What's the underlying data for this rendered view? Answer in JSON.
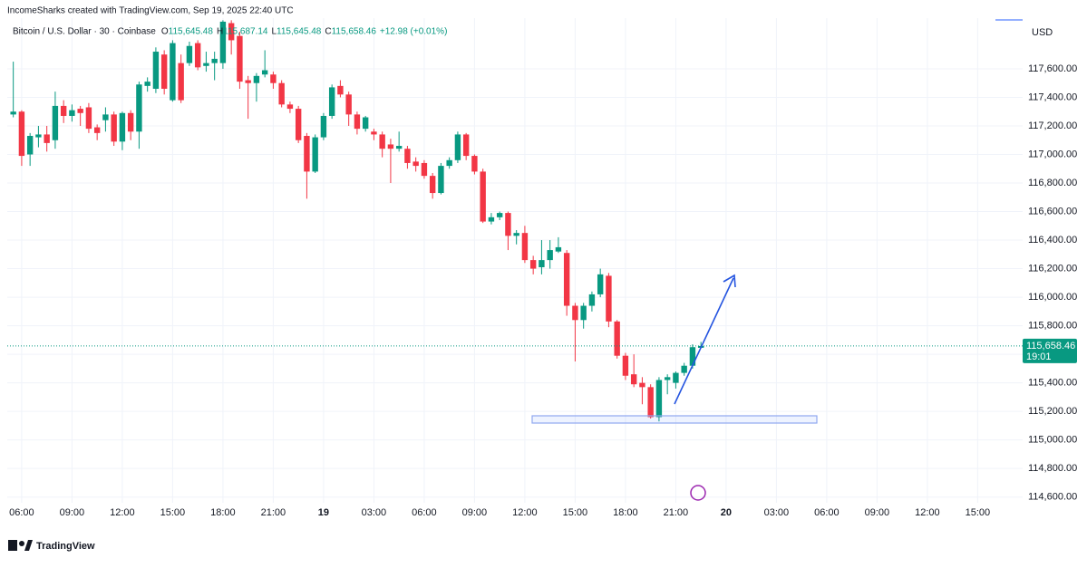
{
  "chart_data": {
    "type": "candlestick",
    "credit": "IncomeSharks created with TradingView.com, Sep 19, 2025 22:40 UTC",
    "symbol": "Bitcoin / U.S. Dollar · 30 · Coinbase",
    "ohlc": [
      {
        "key": "O",
        "value": "115,645.48"
      },
      {
        "key": "H",
        "value": "115,687.14"
      },
      {
        "key": "L",
        "value": "115,645.48"
      },
      {
        "key": "C",
        "value": "115,658.46"
      }
    ],
    "change": "+12.98 (+0.01%)",
    "currency": "USD",
    "last_price": {
      "value": 115658.46,
      "label": "115,658.46"
    },
    "countdown": "19:01",
    "brand": "TradingView",
    "up_color": "#089981",
    "down_color": "#f23645",
    "grid": true,
    "xlim": [
      5.14,
      65.68
    ],
    "ylim": [
      114560,
      117955
    ],
    "xticks": [
      {
        "value": 6,
        "label": "06:00"
      },
      {
        "value": 9,
        "label": "09:00"
      },
      {
        "value": 12,
        "label": "12:00"
      },
      {
        "value": 15,
        "label": "15:00"
      },
      {
        "value": 18,
        "label": "18:00"
      },
      {
        "value": 21,
        "label": "21:00"
      },
      {
        "value": 24,
        "label": "19"
      },
      {
        "value": 27,
        "label": "03:00"
      },
      {
        "value": 30,
        "label": "06:00"
      },
      {
        "value": 33,
        "label": "09:00"
      },
      {
        "value": 36,
        "label": "12:00"
      },
      {
        "value": 39,
        "label": "15:00"
      },
      {
        "value": 42,
        "label": "18:00"
      },
      {
        "value": 45,
        "label": "21:00"
      },
      {
        "value": 48,
        "label": "20"
      },
      {
        "value": 51,
        "label": "03:00"
      },
      {
        "value": 54,
        "label": "06:00"
      },
      {
        "value": 57,
        "label": "09:00"
      },
      {
        "value": 60,
        "label": "12:00"
      },
      {
        "value": 63,
        "label": "15:00"
      }
    ],
    "yticks": [
      {
        "value": 114600,
        "label": "114,600.00"
      },
      {
        "value": 114800,
        "label": "114,800.00"
      },
      {
        "value": 115000,
        "label": "115,000.00"
      },
      {
        "value": 115200,
        "label": "115,200.00"
      },
      {
        "value": 115400,
        "label": "115,400.00"
      },
      {
        "value": 115600,
        "label": "115,600.00"
      },
      {
        "value": 115800,
        "label": "115,800.00"
      },
      {
        "value": 116000,
        "label": "116,000.00"
      },
      {
        "value": 116200,
        "label": "116,200.00"
      },
      {
        "value": 116400,
        "label": "116,400.00"
      },
      {
        "value": 116600,
        "label": "116,600.00"
      },
      {
        "value": 116800,
        "label": "116,800.00"
      },
      {
        "value": 117000,
        "label": "117,000.00"
      },
      {
        "value": 117200,
        "label": "117,200.00"
      },
      {
        "value": 117400,
        "label": "117,400.00"
      },
      {
        "value": 117600,
        "label": "117,600.00"
      }
    ],
    "x": [
      5.5,
      6,
      6.5,
      7,
      7.5,
      8,
      8.5,
      9,
      9.5,
      10,
      10.5,
      11,
      11.5,
      12,
      12.5,
      13,
      13.5,
      14,
      14.5,
      15,
      15.5,
      16,
      16.5,
      17,
      17.5,
      18,
      18.5,
      19,
      19.5,
      20,
      20.5,
      21,
      21.5,
      22,
      22.5,
      23,
      23.5,
      24,
      24.5,
      25,
      25.5,
      26,
      26.5,
      27,
      27.5,
      28,
      28.5,
      29,
      29.5,
      30,
      30.5,
      31,
      31.5,
      32,
      32.5,
      33,
      33.5,
      34,
      34.5,
      35,
      35.5,
      36,
      36.5,
      37,
      37.5,
      38,
      38.5,
      39,
      39.5,
      40,
      40.5,
      41,
      41.5,
      42,
      42.5,
      43,
      43.5,
      44,
      44.5,
      45,
      45.5,
      46,
      46.5
    ],
    "open": [
      117280,
      117300,
      117000,
      117120,
      117140,
      117100,
      117340,
      117270,
      117320,
      117330,
      117190,
      117240,
      117280,
      117090,
      117290,
      117160,
      117480,
      117460,
      117700,
      117380,
      117640,
      117640,
      117780,
      117620,
      117640,
      117640,
      117920,
      117830,
      117520,
      117500,
      117560,
      117560,
      117500,
      117350,
      117320,
      117130,
      116880,
      117120,
      117270,
      117480,
      117420,
      117280,
      117180,
      117160,
      117140,
      117070,
      117040,
      117040,
      116950,
      116940,
      116850,
      116730,
      116920,
      116960,
      117140,
      116990,
      116880,
      116530,
      116560,
      116590,
      116430,
      116450,
      116260,
      116210,
      116260,
      116320,
      116310,
      115940,
      115840,
      115940,
      116020,
      116150,
      115830,
      115590,
      115460,
      115400,
      115370,
      115160,
      115420,
      115400,
      115470,
      115520,
      115645.48
    ],
    "high": [
      117650,
      117310,
      117150,
      117200,
      117200,
      117440,
      117380,
      117350,
      117340,
      117360,
      117210,
      117330,
      117300,
      117300,
      117310,
      117510,
      117540,
      117750,
      117730,
      117800,
      117700,
      117790,
      117800,
      117720,
      117720,
      117940,
      117940,
      117860,
      117550,
      117570,
      117730,
      117580,
      117520,
      117370,
      117340,
      117150,
      117140,
      117290,
      117490,
      117520,
      117440,
      117300,
      117270,
      117180,
      117160,
      117110,
      117160,
      117060,
      116980,
      116960,
      116870,
      116940,
      116980,
      117160,
      117150,
      117000,
      116900,
      116590,
      116600,
      116600,
      116470,
      116500,
      116290,
      116400,
      116400,
      116420,
      116330,
      115960,
      115960,
      116040,
      116200,
      116170,
      115840,
      115610,
      115600,
      115440,
      115390,
      115440,
      115460,
      115480,
      115540,
      115670,
      115687.14
    ],
    "low": [
      117260,
      116920,
      116920,
      117050,
      117020,
      117040,
      117220,
      117230,
      117200,
      117150,
      117100,
      117160,
      117060,
      117030,
      117100,
      117040,
      117440,
      117430,
      117420,
      117370,
      117360,
      117620,
      117590,
      117580,
      117520,
      117600,
      117700,
      117460,
      117250,
      117370,
      117540,
      117460,
      117330,
      117290,
      117080,
      116690,
      116870,
      117100,
      117250,
      117400,
      117200,
      117140,
      117160,
      117100,
      116980,
      116800,
      117020,
      116900,
      116880,
      116830,
      116690,
      116720,
      116900,
      116940,
      116960,
      116860,
      116520,
      116510,
      116540,
      116330,
      116370,
      116240,
      116160,
      116160,
      116200,
      116310,
      115870,
      115550,
      115780,
      115900,
      116000,
      115790,
      115570,
      115420,
      115370,
      115250,
      115150,
      115130,
      115320,
      115360,
      115450,
      115500,
      115645.48
    ],
    "close": [
      117300,
      116990,
      117130,
      117140,
      117080,
      117340,
      117270,
      117310,
      117290,
      117180,
      117150,
      117280,
      117090,
      117290,
      117160,
      117490,
      117510,
      117720,
      117460,
      117780,
      117380,
      117760,
      117610,
      117640,
      117670,
      117930,
      117800,
      117510,
      117500,
      117550,
      117590,
      117500,
      117350,
      117320,
      117100,
      116880,
      117120,
      117270,
      117470,
      117420,
      117280,
      117180,
      117260,
      117140,
      117040,
      117040,
      117060,
      116940,
      116920,
      116850,
      116730,
      116920,
      116960,
      117140,
      116990,
      116880,
      116530,
      116560,
      116590,
      116430,
      116450,
      116260,
      116200,
      116260,
      116330,
      116350,
      115940,
      115840,
      115940,
      116020,
      116160,
      115830,
      115590,
      115450,
      115390,
      115370,
      115160,
      115420,
      115440,
      115470,
      115520,
      115650,
      115658.46
    ]
  }
}
